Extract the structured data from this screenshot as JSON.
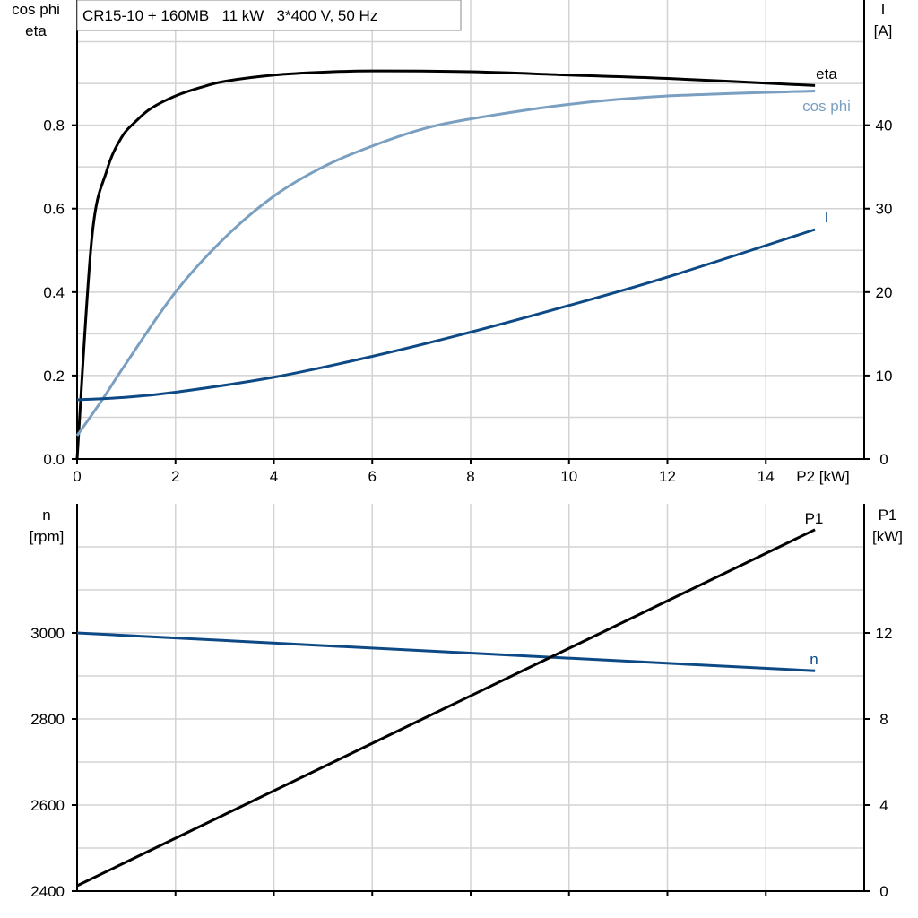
{
  "title": "CR15-10 + 160MB   11 kW   3*400 V, 50 Hz",
  "colors": {
    "eta": "#000000",
    "cos_phi": "#7a9fc0",
    "I": "#0d4a85",
    "n": "#0d4a85",
    "P1": "#000000",
    "grid": "#d3d3d3"
  },
  "chart_data": [
    {
      "type": "line",
      "xlabel": "P2 [kW]",
      "ylabel_left": [
        "cos phi",
        "eta"
      ],
      "ylabel_right": [
        "I",
        "[A]"
      ],
      "xlim": [
        0,
        16
      ],
      "ylim_left": [
        0,
        1.1
      ],
      "ylim_right": [
        0,
        55
      ],
      "x_ticks": [
        "0",
        "2",
        "4",
        "6",
        "8",
        "10",
        "12",
        "14"
      ],
      "y_left_ticks": [
        "0.0",
        "0.2",
        "0.4",
        "0.6",
        "0.8"
      ],
      "y_right_ticks": [
        "0",
        "10",
        "20",
        "30",
        "40"
      ],
      "grid": true,
      "series": [
        {
          "name": "eta",
          "axis": "left",
          "x": [
            0,
            0.3,
            0.6,
            0.9,
            1.2,
            1.5,
            2,
            2.5,
            3,
            4,
            5,
            6,
            8,
            10,
            12,
            15
          ],
          "y": [
            0,
            0.53,
            0.69,
            0.77,
            0.81,
            0.84,
            0.87,
            0.89,
            0.905,
            0.92,
            0.927,
            0.93,
            0.928,
            0.92,
            0.912,
            0.895
          ]
        },
        {
          "name": "cos phi",
          "axis": "left",
          "x": [
            0,
            0.5,
            1,
            2,
            3,
            4,
            5,
            6,
            7,
            8,
            10,
            12,
            15
          ],
          "y": [
            0.056,
            0.14,
            0.23,
            0.4,
            0.53,
            0.63,
            0.7,
            0.75,
            0.79,
            0.815,
            0.85,
            0.87,
            0.882
          ]
        },
        {
          "name": "I",
          "axis": "right",
          "x": [
            0,
            1,
            2,
            4,
            6,
            8,
            10,
            12,
            15
          ],
          "y": [
            7.1,
            7.4,
            8,
            9.8,
            12.3,
            15.2,
            18.4,
            21.8,
            27.5
          ]
        }
      ]
    },
    {
      "type": "line",
      "xlim": [
        0,
        16
      ],
      "ylabel_left": [
        "n",
        "[rpm]"
      ],
      "ylabel_right": [
        "P1",
        "[kW]"
      ],
      "ylim_left": [
        2400,
        3300
      ],
      "ylim_right": [
        0,
        18
      ],
      "y_left_ticks": [
        "2400",
        "2600",
        "2800",
        "3000"
      ],
      "y_right_ticks": [
        "0",
        "4",
        "8",
        "12"
      ],
      "grid": true,
      "series": [
        {
          "name": "n",
          "axis": "left",
          "x": [
            0,
            15
          ],
          "y": [
            3000,
            2912
          ]
        },
        {
          "name": "P1",
          "axis": "right",
          "x": [
            0,
            15
          ],
          "y": [
            0.25,
            16.8
          ]
        }
      ]
    }
  ]
}
